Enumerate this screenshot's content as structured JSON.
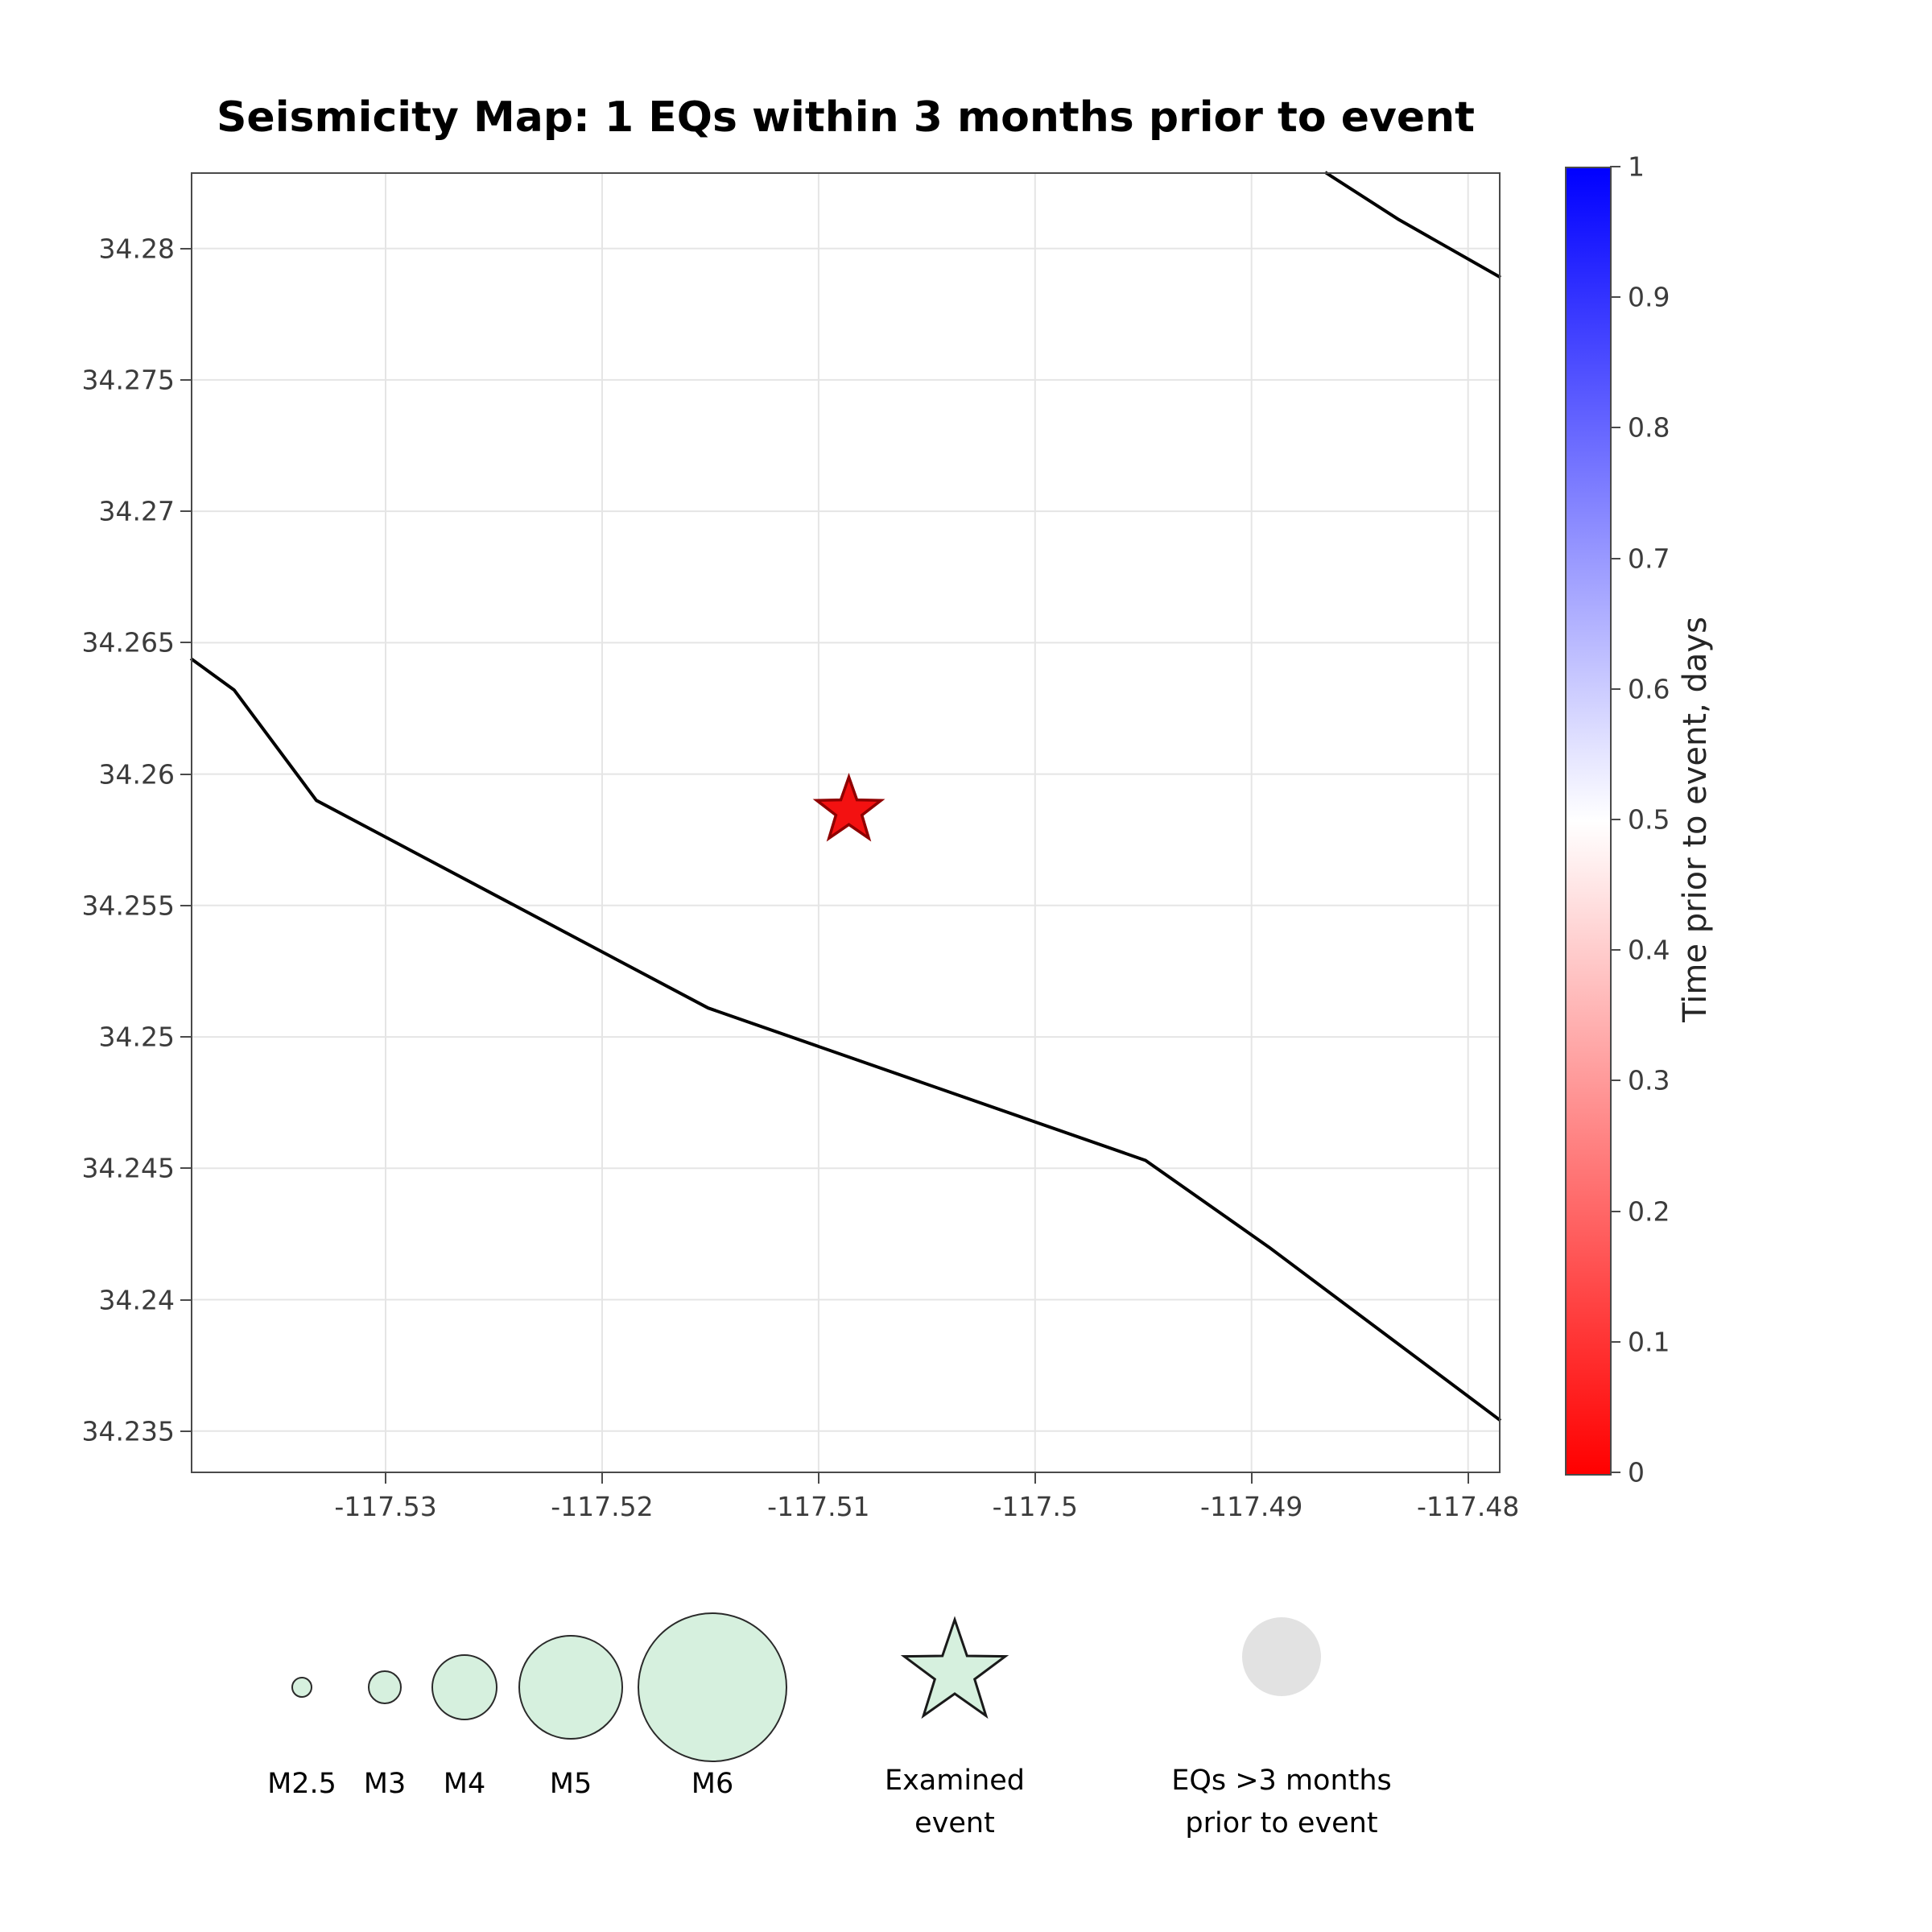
{
  "title": "Seismicity Map: 1 EQs within 3 months prior to event",
  "chart_data": {
    "type": "scatter",
    "title": "Seismicity Map: 1 EQs within 3 months prior to event",
    "xlabel": "",
    "ylabel": "",
    "grid": true,
    "x_range": [
      -117.539,
      -117.4785
    ],
    "y_range": [
      34.2334,
      34.2829
    ],
    "x_ticks": [
      {
        "v": -117.53,
        "label": "-117.53"
      },
      {
        "v": -117.52,
        "label": "-117.52"
      },
      {
        "v": -117.51,
        "label": "-117.51"
      },
      {
        "v": -117.5,
        "label": "-117.5"
      },
      {
        "v": -117.49,
        "label": "-117.49"
      },
      {
        "v": -117.48,
        "label": "-117.48"
      }
    ],
    "y_ticks": [
      {
        "v": 34.28,
        "label": "34.28"
      },
      {
        "v": 34.275,
        "label": "34.275"
      },
      {
        "v": 34.27,
        "label": "34.27"
      },
      {
        "v": 34.265,
        "label": "34.265"
      },
      {
        "v": 34.26,
        "label": "34.26"
      },
      {
        "v": 34.255,
        "label": "34.255"
      },
      {
        "v": 34.25,
        "label": "34.25"
      },
      {
        "v": 34.245,
        "label": "34.245"
      },
      {
        "v": 34.24,
        "label": "34.24"
      },
      {
        "v": 34.235,
        "label": "34.235"
      }
    ],
    "eq_count_within_3_months": 1,
    "examined_event": {
      "lon": -117.5086,
      "lat": 34.2586,
      "marker": "star"
    },
    "fault_lines": [
      {
        "points": [
          [
            -117.4866,
            34.2829
          ],
          [
            -117.4832,
            34.2811
          ],
          [
            -117.4785,
            34.2789
          ]
        ]
      },
      {
        "points": [
          [
            -117.539,
            34.2644
          ],
          [
            -117.537,
            34.2632
          ],
          [
            -117.5332,
            34.259
          ],
          [
            -117.5151,
            34.2511
          ],
          [
            -117.4949,
            34.2453
          ],
          [
            -117.4892,
            34.242
          ],
          [
            -117.4785,
            34.2354
          ]
        ]
      }
    ]
  },
  "colorbar": {
    "label": "Time prior to event, days",
    "min": 0,
    "max": 1,
    "ticks": [
      {
        "v": 0,
        "label": "0"
      },
      {
        "v": 0.1,
        "label": "0.1"
      },
      {
        "v": 0.2,
        "label": "0.2"
      },
      {
        "v": 0.3,
        "label": "0.3"
      },
      {
        "v": 0.4,
        "label": "0.4"
      },
      {
        "v": 0.5,
        "label": "0.5"
      },
      {
        "v": 0.6,
        "label": "0.6"
      },
      {
        "v": 0.7,
        "label": "0.7"
      },
      {
        "v": 0.8,
        "label": "0.8"
      },
      {
        "v": 0.9,
        "label": "0.9"
      },
      {
        "v": 1,
        "label": "1"
      }
    ],
    "colors_bottom_to_top": [
      "#ff0000",
      "#ffffff",
      "#0000ff"
    ]
  },
  "legend": {
    "magnitude_markers": [
      {
        "label": "M2.5",
        "radius": 12
      },
      {
        "label": "M3",
        "radius": 20
      },
      {
        "label": "M4",
        "radius": 40
      },
      {
        "label": "M5",
        "radius": 64
      },
      {
        "label": "M6",
        "radius": 92
      }
    ],
    "examined_event": {
      "lines": [
        "Examined",
        "event"
      ]
    },
    "old_eqs": {
      "lines": [
        "EQs >3 months",
        "prior to event"
      ]
    }
  },
  "colors": {
    "marker_fill": "#d6f0de",
    "marker_edge": "#2a2a2a",
    "examined_fill": "#f31111",
    "examined_edge": "#8f0000",
    "old_eq_fill": "#e2e2e2",
    "fault_line": "#000000",
    "grid": "#e5e5e5",
    "axis": "#4a4a4a"
  }
}
